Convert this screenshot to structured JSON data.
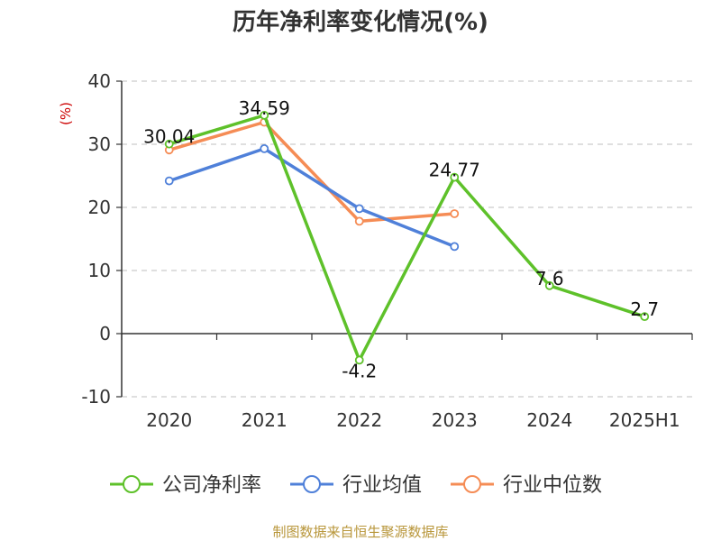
{
  "chart_data": {
    "type": "line",
    "title": "历年净利率变化情况(%)",
    "ylabel": "(%)",
    "xlabel": "",
    "categories": [
      "2020",
      "2021",
      "2022",
      "2023",
      "2024",
      "2025H1"
    ],
    "ylim": [
      -10,
      40
    ],
    "yticks": [
      -10,
      0,
      10,
      20,
      30,
      40
    ],
    "grid": true,
    "legend_position": "bottom",
    "series": [
      {
        "name": "公司净利率",
        "color": "#5ec12a",
        "values": [
          30.04,
          34.59,
          -4.2,
          24.77,
          7.6,
          2.7
        ],
        "labels": [
          "30.04",
          "34.59",
          "-4.2",
          "24.77",
          "7.6",
          "2.7"
        ]
      },
      {
        "name": "行业均值",
        "color": "#4f80d9",
        "values": [
          24.2,
          29.3,
          19.8,
          13.8,
          null,
          null
        ]
      },
      {
        "name": "行业中位数",
        "color": "#f58c55",
        "values": [
          29.1,
          33.5,
          17.8,
          19.0,
          null,
          null
        ]
      }
    ],
    "source": "制图数据来自恒生聚源数据库"
  }
}
